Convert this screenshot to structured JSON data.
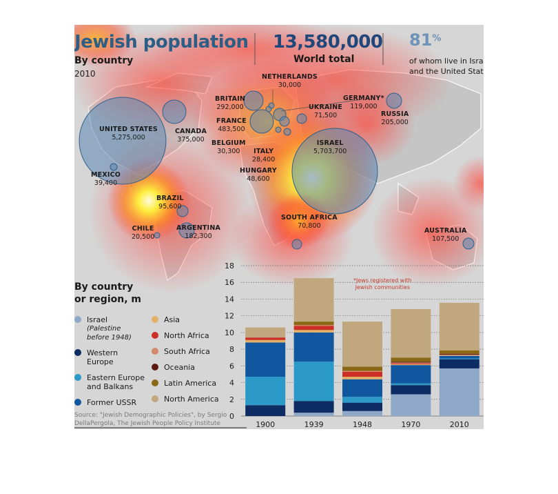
{
  "header": {
    "title": "Jewish population",
    "subtitle": "By country",
    "year": "2010",
    "total_value": "13,580,000",
    "total_label": "World total",
    "share_value": "81",
    "share_symbol": "%",
    "share_note_line1": "of whom live in Israel",
    "share_note_line2": "and the United States"
  },
  "map_labels": [
    {
      "id": "united-states",
      "name": "UNITED STATES",
      "value": "5,275,000"
    },
    {
      "id": "canada",
      "name": "CANADA",
      "value": "375,000"
    },
    {
      "id": "mexico",
      "name": "MEXICO",
      "value": "39,400"
    },
    {
      "id": "brazil",
      "name": "BRAZIL",
      "value": "95,600"
    },
    {
      "id": "chile",
      "name": "CHILE",
      "value": "20,500"
    },
    {
      "id": "argentina",
      "name": "ARGENTINA",
      "value": "182,300"
    },
    {
      "id": "britain",
      "name": "BRITAIN",
      "value": "292,000"
    },
    {
      "id": "france",
      "name": "FRANCE",
      "value": "483,500"
    },
    {
      "id": "belgium",
      "name": "BELGIUM",
      "value": "30,300"
    },
    {
      "id": "netherlands",
      "name": "NETHERLANDS",
      "value": "30,000"
    },
    {
      "id": "germany",
      "name": "GERMANY*",
      "value": "119,000"
    },
    {
      "id": "ukraine",
      "name": "UKRAINE",
      "value": "71,500"
    },
    {
      "id": "russia",
      "name": "RUSSIA",
      "value": "205,000"
    },
    {
      "id": "italy",
      "name": "ITALY",
      "value": "28,400"
    },
    {
      "id": "hungary",
      "name": "HUNGARY",
      "value": "48,600"
    },
    {
      "id": "israel",
      "name": "ISRAEL",
      "value": "5,703,700"
    },
    {
      "id": "south-africa",
      "name": "SOUTH AFRICA",
      "value": "70,800"
    },
    {
      "id": "australia",
      "name": "AUSTRALIA",
      "value": "107,500"
    }
  ],
  "footnote_line1": "*Jews registered with",
  "footnote_line2": "Jewish communities",
  "legend": {
    "heading_line1": "By country",
    "heading_line2": "or region, m",
    "items_left": [
      {
        "label": "Israel",
        "note_line1": "(Palestine",
        "note_line2": "before 1948)",
        "color": "#8fa8c8"
      },
      {
        "label": "Western",
        "label2": "Europe",
        "color": "#0c2c63"
      },
      {
        "label": "Eastern Europe",
        "label2": "and Balkans",
        "color": "#2b9ac9"
      },
      {
        "label": "Former USSR",
        "color": "#1057a0"
      }
    ],
    "items_right": [
      {
        "label": "Asia",
        "color": "#e3b067"
      },
      {
        "label": "North Africa",
        "color": "#cc2f25"
      },
      {
        "label": "South Africa",
        "color": "#d48a6d"
      },
      {
        "label": "Oceania",
        "color": "#5a1a10"
      },
      {
        "label": "Latin America",
        "color": "#8b6914"
      },
      {
        "label": "North America",
        "color": "#c0a77e"
      }
    ]
  },
  "source_line1": "Source: \"Jewish Demographic Policies\", by Sergio",
  "source_line2": "DellaPergola, The Jewish People Policy Institute",
  "chart_data": {
    "type": "bar",
    "stacked": true,
    "categories": [
      "1900",
      "1939",
      "1948",
      "1970",
      "2010"
    ],
    "ylim": [
      0,
      18
    ],
    "yticks": [
      0,
      2,
      4,
      6,
      8,
      10,
      12,
      14,
      16,
      18
    ],
    "series": [
      {
        "name": "Israel",
        "color": "#8fa8c8",
        "values": [
          0.0,
          0.4,
          0.6,
          2.6,
          5.7
        ]
      },
      {
        "name": "Western Europe",
        "color": "#0c2c63",
        "values": [
          1.3,
          1.4,
          1.0,
          1.1,
          1.1
        ]
      },
      {
        "name": "Eastern Europe and Balkans",
        "color": "#2b9ac9",
        "values": [
          3.4,
          4.7,
          0.7,
          0.2,
          0.1
        ]
      },
      {
        "name": "Former USSR",
        "color": "#1057a0",
        "values": [
          4.1,
          3.5,
          2.1,
          2.2,
          0.3
        ]
      },
      {
        "name": "Asia",
        "color": "#e3b067",
        "values": [
          0.3,
          0.3,
          0.3,
          0.1,
          0.05
        ]
      },
      {
        "name": "North Africa",
        "color": "#cc2f25",
        "values": [
          0.3,
          0.5,
          0.6,
          0.1,
          0.0
        ]
      },
      {
        "name": "South Africa",
        "color": "#d48a6d",
        "values": [
          0.0,
          0.1,
          0.1,
          0.1,
          0.1
        ]
      },
      {
        "name": "Oceania",
        "color": "#5a1a10",
        "values": [
          0.0,
          0.0,
          0.0,
          0.1,
          0.1
        ]
      },
      {
        "name": "Latin America",
        "color": "#8b6914",
        "values": [
          0.0,
          0.4,
          0.5,
          0.5,
          0.4
        ]
      },
      {
        "name": "North America",
        "color": "#c0a77e",
        "values": [
          1.2,
          5.2,
          5.4,
          5.8,
          5.7
        ]
      }
    ]
  }
}
